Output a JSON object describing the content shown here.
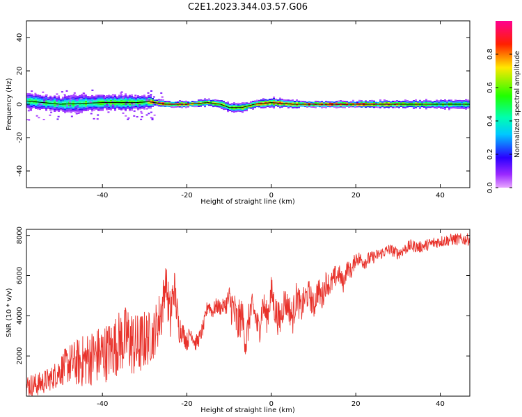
{
  "title": "C2E1.2023.344.03.57.G06",
  "colors": {
    "snr_line": "#e8322b",
    "spec_line": "#000000"
  },
  "chart_data": [
    {
      "type": "heatmap",
      "xlabel": "Height of straight line (km)",
      "ylabel": "Frequency (Hz)",
      "xlim": [
        -58,
        47
      ],
      "ylim": [
        -50,
        50
      ],
      "xticks": [
        -40,
        -20,
        0,
        20,
        40
      ],
      "xtick_labels": [
        "-40",
        "-20",
        "0",
        "20",
        "40"
      ],
      "yticks": [
        -40,
        -20,
        0,
        20,
        40
      ],
      "ytick_labels": [
        "-40",
        "-20",
        "0",
        "20",
        "40"
      ],
      "colorbar": {
        "label": "Normalized spectral amplitude",
        "range": [
          0,
          1
        ],
        "ticks": [
          0.0,
          0.2,
          0.4,
          0.6,
          0.8
        ],
        "tick_labels": [
          "0.0",
          "0.2",
          "0.4",
          "0.6",
          "0.8"
        ],
        "colormap": "gist_rainbow_r"
      },
      "peak_frequency_trace": {
        "x": [
          -58,
          -50,
          -40,
          -32,
          -29,
          -25,
          -20,
          -15,
          -12,
          -10,
          -7,
          -4,
          0,
          5,
          10,
          20,
          30,
          47
        ],
        "y": [
          2,
          0,
          1,
          1,
          1.5,
          0,
          0,
          1,
          0,
          -2,
          -2,
          0,
          1,
          0,
          0,
          0,
          0,
          0
        ]
      },
      "spectral_band": {
        "x": [
          -58,
          -50,
          -45,
          -40,
          -35,
          -30,
          -28,
          -25,
          -20,
          -15,
          -10,
          -5,
          0,
          5,
          10,
          20,
          30,
          40,
          47
        ],
        "half_width_hz": [
          5,
          5,
          6,
          5,
          5,
          5,
          2.5,
          2,
          2,
          2.5,
          3,
          2.5,
          3,
          2.5,
          2,
          2,
          2.5,
          3,
          3
        ],
        "peak_amplitude": [
          0.5,
          0.55,
          0.55,
          0.6,
          0.6,
          0.55,
          0.9,
          0.9,
          0.95,
          0.7,
          0.7,
          0.75,
          0.85,
          0.8,
          0.95,
          0.95,
          0.85,
          0.6,
          0.55
        ]
      }
    },
    {
      "type": "line",
      "xlabel": "Height of straight line (km)",
      "ylabel": "SNR (10 * v/v)",
      "xlim": [
        -58,
        47
      ],
      "ylim": [
        0,
        8300
      ],
      "xticks": [
        -40,
        -20,
        0,
        20,
        40
      ],
      "xtick_labels": [
        "-40",
        "-20",
        "0",
        "20",
        "40"
      ],
      "yticks": [
        2000,
        4000,
        6000,
        8000
      ],
      "ytick_labels": [
        "2000",
        "4000",
        "6000",
        "8000"
      ],
      "series": [
        {
          "x": [
            -58,
            -55,
            -52,
            -50,
            -48,
            -45,
            -43,
            -40,
            -38,
            -36,
            -34,
            -32,
            -30,
            -28,
            -26,
            -25,
            -24,
            -23,
            -22,
            -21,
            -20,
            -19,
            -18,
            -17,
            -16,
            -15,
            -14,
            -13,
            -12,
            -11,
            -10,
            -9,
            -8,
            -7,
            -6,
            -5,
            -4,
            -3,
            -2,
            -1,
            0,
            1,
            2,
            3,
            4,
            5,
            6,
            7,
            8,
            9,
            10,
            11,
            12,
            13,
            14,
            15,
            16,
            17,
            18,
            19,
            20,
            22,
            25,
            28,
            30,
            33,
            35,
            38,
            40,
            43,
            47
          ],
          "y": [
            500,
            600,
            900,
            1300,
            1600,
            1700,
            1900,
            2100,
            2300,
            2700,
            2900,
            2400,
            2800,
            3000,
            4200,
            5800,
            3800,
            5500,
            3500,
            3200,
            2700,
            3200,
            2600,
            2900,
            3500,
            4600,
            4200,
            4500,
            4400,
            4500,
            4800,
            4300,
            3500,
            4100,
            2600,
            4300,
            4200,
            3200,
            4600,
            3900,
            5200,
            4200,
            3700,
            4700,
            4500,
            3900,
            5000,
            4300,
            4900,
            5100,
            4400,
            5300,
            4900,
            5700,
            5500,
            5900,
            6100,
            5600,
            6400,
            6200,
            6900,
            6700,
            7000,
            7300,
            7100,
            7500,
            7400,
            7600,
            7700,
            7800,
            7800
          ],
          "amplitude": [
            600,
            600,
            600,
            800,
            1000,
            1300,
            1400,
            1500,
            1500,
            1600,
            1700,
            1700,
            1500,
            1200,
            1400,
            800,
            1600,
            1000,
            900,
            500,
            500,
            400,
            400,
            400,
            400,
            400,
            400,
            400,
            400,
            400,
            800,
            1200,
            1200,
            900,
            900,
            900,
            800,
            900,
            800,
            800,
            800,
            900,
            900,
            800,
            700,
            900,
            800,
            800,
            700,
            700,
            700,
            700,
            700,
            600,
            600,
            600,
            500,
            500,
            400,
            400,
            400,
            400,
            300,
            300,
            300,
            300,
            300,
            300,
            300,
            300,
            300
          ]
        }
      ]
    }
  ]
}
